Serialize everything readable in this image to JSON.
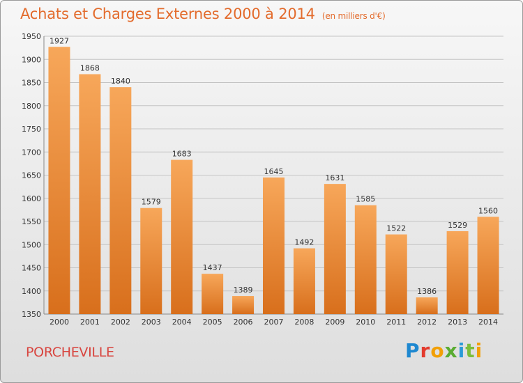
{
  "header": {
    "title": "Achats et Charges Externes 2000 à 2014",
    "subtitle": "(en milliers d'€)"
  },
  "footer": {
    "place": "PORCHEVILLE",
    "logo": "Proxiti"
  },
  "colors": {
    "title": "#e36b2c",
    "place": "#d8453f",
    "bar_top": "#f7a75a",
    "bar_bottom": "#d86f1c"
  },
  "chart_data": {
    "type": "bar",
    "title": "Achats et Charges Externes 2000 à 2014",
    "subtitle": "(en milliers d'€)",
    "categories": [
      "2000",
      "2001",
      "2002",
      "2003",
      "2004",
      "2005",
      "2006",
      "2007",
      "2008",
      "2009",
      "2010",
      "2011",
      "2012",
      "2013",
      "2014"
    ],
    "values": [
      1927,
      1868,
      1840,
      1579,
      1683,
      1437,
      1389,
      1645,
      1492,
      1631,
      1585,
      1522,
      1386,
      1529,
      1560
    ],
    "ylim": [
      1350,
      1950
    ],
    "yticks": [
      1350,
      1400,
      1450,
      1500,
      1550,
      1600,
      1650,
      1700,
      1750,
      1800,
      1850,
      1900,
      1950
    ],
    "grid": true,
    "data_labels": true
  }
}
